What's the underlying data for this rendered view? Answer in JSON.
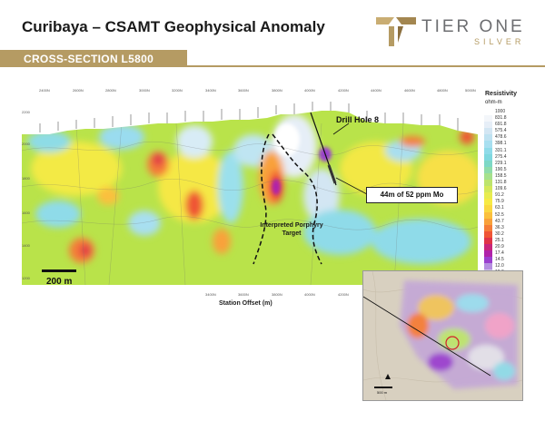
{
  "header": {
    "title": "Curibaya – CSAMT Geophysical Anomaly",
    "logo_word": "TIER ONE",
    "logo_sub": "SILVER"
  },
  "banner": {
    "text": "CROSS-SECTION L5800"
  },
  "section": {
    "x_axis_title": "Station Offset (m)",
    "x_ticks": [
      "2400N",
      "2600N",
      "2800N",
      "3000N",
      "3200N",
      "3400N",
      "3600N",
      "3800N",
      "4000N",
      "4200N",
      "4400N",
      "4600N",
      "4800N",
      "5000N"
    ],
    "y_ticks": [
      "2200",
      "2000",
      "1800",
      "1600",
      "1400",
      "1200"
    ],
    "scale_bar": "200 m",
    "drill_hole": "Drill Hole 8",
    "intercept": "44m of 52 ppm Mo",
    "target_label": "Interpreted Porphyry Target"
  },
  "legend": {
    "title": "Resistivity",
    "unit": "ohm-m",
    "entries": [
      {
        "value": "1000",
        "color": "#ffffff"
      },
      {
        "value": "831.8",
        "color": "#f3f6fa"
      },
      {
        "value": "691.8",
        "color": "#e6eef7"
      },
      {
        "value": "575.4",
        "color": "#d3e6f3"
      },
      {
        "value": "478.6",
        "color": "#bfe2f1"
      },
      {
        "value": "398.1",
        "color": "#a8dff0"
      },
      {
        "value": "331.1",
        "color": "#8fdbe9"
      },
      {
        "value": "275.4",
        "color": "#7fd8df"
      },
      {
        "value": "229.1",
        "color": "#7dd8c6"
      },
      {
        "value": "190.5",
        "color": "#8fdcaa"
      },
      {
        "value": "158.5",
        "color": "#a6e18c"
      },
      {
        "value": "131.8",
        "color": "#bde46d"
      },
      {
        "value": "109.6",
        "color": "#d4e85a"
      },
      {
        "value": "91.2",
        "color": "#e8ec4f"
      },
      {
        "value": "75.9",
        "color": "#f7ea45"
      },
      {
        "value": "63.1",
        "color": "#fad841"
      },
      {
        "value": "52.5",
        "color": "#fbc03d"
      },
      {
        "value": "43.7",
        "color": "#f9a13b"
      },
      {
        "value": "36.3",
        "color": "#f57d39"
      },
      {
        "value": "30.2",
        "color": "#ef5535"
      },
      {
        "value": "25.1",
        "color": "#e03447"
      },
      {
        "value": "20.9",
        "color": "#c8257a"
      },
      {
        "value": "17.4",
        "color": "#b022a9"
      },
      {
        "value": "14.5",
        "color": "#9b3fcf"
      },
      {
        "value": "12.0",
        "color": "#b58ee0"
      },
      {
        "value": "10.0",
        "color": "#d4c0ee"
      }
    ]
  },
  "inset": {
    "scale": "500 m"
  }
}
